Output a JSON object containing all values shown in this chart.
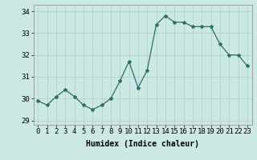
{
  "x": [
    0,
    1,
    2,
    3,
    4,
    5,
    6,
    7,
    8,
    9,
    10,
    11,
    12,
    13,
    14,
    15,
    16,
    17,
    18,
    19,
    20,
    21,
    22,
    23
  ],
  "y": [
    29.9,
    29.7,
    30.1,
    30.4,
    30.1,
    29.7,
    29.5,
    29.7,
    30.0,
    30.8,
    31.7,
    30.5,
    31.3,
    33.4,
    33.8,
    33.5,
    33.5,
    33.3,
    33.3,
    33.3,
    32.5,
    32.0,
    32.0,
    31.5
  ],
  "line_color": "#2e6e63",
  "marker": "*",
  "marker_size": 3,
  "bg_color": "#cce8e5",
  "grid_color": "#aacfcc",
  "xlabel": "Humidex (Indice chaleur)",
  "ylabel_ticks": [
    29,
    30,
    31,
    32,
    33,
    34
  ],
  "xlim": [
    -0.5,
    23.5
  ],
  "ylim": [
    28.8,
    34.3
  ],
  "xtick_labels": [
    "0",
    "1",
    "2",
    "3",
    "4",
    "5",
    "6",
    "7",
    "8",
    "9",
    "10",
    "11",
    "12",
    "13",
    "14",
    "15",
    "16",
    "17",
    "18",
    "19",
    "20",
    "21",
    "22",
    "23"
  ],
  "label_fontsize": 7,
  "tick_fontsize": 6.5
}
